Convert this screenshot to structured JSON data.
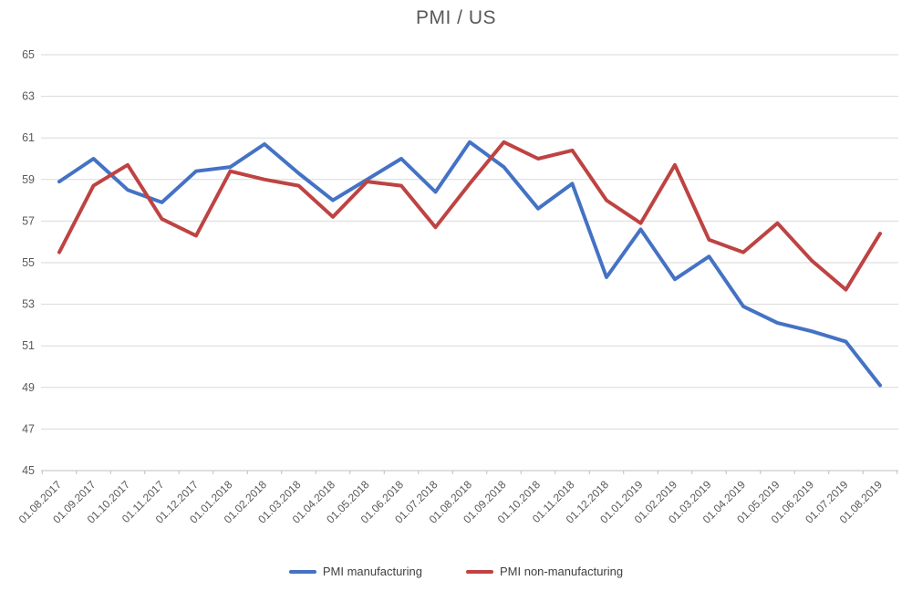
{
  "chart_data": {
    "type": "line",
    "title": "PMI / US",
    "categories": [
      "01.08.2017",
      "01.09.2017",
      "01.10.2017",
      "01.11.2017",
      "01.12.2017",
      "01.01.2018",
      "01.02.2018",
      "01.03.2018",
      "01.04.2018",
      "01.05.2018",
      "01.06.2018",
      "01.07.2018",
      "01.08.2018",
      "01.09.2018",
      "01.10.2018",
      "01.11.2018",
      "01.12.2018",
      "01.01.2019",
      "01.02.2019",
      "01.03.2019",
      "01.04.2019",
      "01.05.2019",
      "01.06.2019",
      "01.07.2019",
      "01.08.2019"
    ],
    "series": [
      {
        "name": "PMI manufacturing",
        "color": "#4472C4",
        "values": [
          58.9,
          60.0,
          58.5,
          57.9,
          59.4,
          59.6,
          60.7,
          59.3,
          58.0,
          59.0,
          60.0,
          58.4,
          60.8,
          59.6,
          57.6,
          58.8,
          54.3,
          56.6,
          54.2,
          55.3,
          52.9,
          52.1,
          51.7,
          51.2,
          49.1
        ]
      },
      {
        "name": "PMI non-manufacturing",
        "color": "#BE4342",
        "values": [
          55.5,
          58.7,
          59.7,
          57.1,
          56.3,
          59.4,
          59.0,
          58.7,
          57.2,
          58.9,
          58.7,
          56.7,
          58.8,
          60.8,
          60.0,
          60.4,
          58.0,
          56.9,
          59.7,
          56.1,
          55.5,
          56.9,
          55.1,
          53.7,
          56.4
        ]
      }
    ],
    "ylim": [
      45,
      65
    ],
    "ytick_step": 2,
    "yticks": [
      65,
      63,
      61,
      59,
      57,
      55,
      53,
      51,
      49,
      47,
      45
    ],
    "grid": true,
    "legend_position": "bottom",
    "colors": {
      "title_text": "#595959",
      "tick_label_text": "#595959",
      "legend_text": "#404040",
      "gridline": "#D9D9D9",
      "axis_line": "#BFBFBF",
      "background": "#FFFFFF"
    }
  }
}
